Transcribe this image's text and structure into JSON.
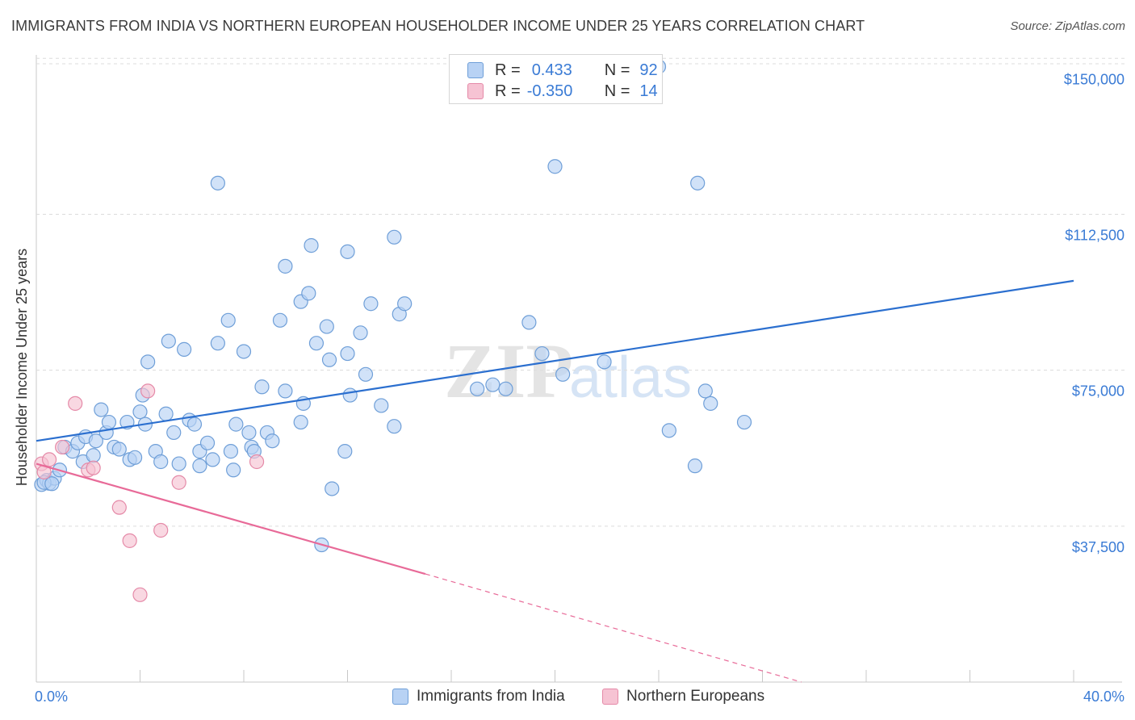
{
  "title": "IMMIGRANTS FROM INDIA VS NORTHERN EUROPEAN HOUSEHOLDER INCOME UNDER 25 YEARS CORRELATION CHART",
  "source": "Source: ZipAtlas.com",
  "watermark": {
    "zip": "ZIP",
    "atlas": "atlas"
  },
  "colors": {
    "blue_fill": "#b8d2f4",
    "blue_stroke": "#6f9fd8",
    "blue_line": "#2b6fcf",
    "pink_fill": "#f6c3d3",
    "pink_stroke": "#e58aa8",
    "pink_line": "#e86a98",
    "axis_text": "#3a7bd5",
    "grid": "#dcdcdc"
  },
  "stats_legend": {
    "rows": [
      {
        "r_label": "R =",
        "r_value": "0.433",
        "n_label": "N =",
        "n_value": "92"
      },
      {
        "r_label": "R =",
        "r_value": "-0.350",
        "n_label": "N =",
        "n_value": "14"
      }
    ]
  },
  "bottom_legend": [
    "Immigrants from India",
    "Northern Europeans"
  ],
  "chart_data": {
    "type": "scatter",
    "title": "IMMIGRANTS FROM INDIA VS NORTHERN EUROPEAN HOUSEHOLDER INCOME UNDER 25 YEARS CORRELATION CHART",
    "xlabel": "",
    "ylabel": "Householder Income Under 25 years",
    "xlim": [
      0,
      40
    ],
    "ylim": [
      0,
      152000
    ],
    "x_tick_labels": [
      "0.0%",
      "40.0%"
    ],
    "y_ticks": [
      37500,
      75000,
      112500,
      150000
    ],
    "y_tick_labels": [
      "$37,500",
      "$75,000",
      "$112,500",
      "$150,000"
    ],
    "grid": "horizontal dashed",
    "legend_position": "bottom",
    "series": [
      {
        "name": "Immigrants from India",
        "points": [
          [
            0.2,
            47500
          ],
          [
            0.4,
            48500
          ],
          [
            0.5,
            47800
          ],
          [
            0.7,
            49000
          ],
          [
            0.9,
            51000
          ],
          [
            1.1,
            56500
          ],
          [
            1.4,
            55500
          ],
          [
            1.6,
            57500
          ],
          [
            1.8,
            53000
          ],
          [
            1.9,
            59000
          ],
          [
            2.2,
            54500
          ],
          [
            2.3,
            58000
          ],
          [
            2.5,
            65500
          ],
          [
            2.7,
            60000
          ],
          [
            2.8,
            62500
          ],
          [
            3.0,
            56500
          ],
          [
            3.2,
            56000
          ],
          [
            3.5,
            62500
          ],
          [
            3.6,
            53500
          ],
          [
            3.8,
            54000
          ],
          [
            4.0,
            65000
          ],
          [
            4.1,
            69000
          ],
          [
            4.2,
            62000
          ],
          [
            4.3,
            77000
          ],
          [
            4.6,
            55500
          ],
          [
            4.8,
            53000
          ],
          [
            5.0,
            64500
          ],
          [
            5.1,
            82000
          ],
          [
            5.3,
            60000
          ],
          [
            5.5,
            52500
          ],
          [
            5.7,
            80000
          ],
          [
            5.9,
            63000
          ],
          [
            6.1,
            62000
          ],
          [
            6.3,
            55500
          ],
          [
            6.3,
            52000
          ],
          [
            6.6,
            57500
          ],
          [
            6.8,
            53500
          ],
          [
            7.0,
            81500
          ],
          [
            7.0,
            120000
          ],
          [
            7.4,
            87000
          ],
          [
            7.5,
            55500
          ],
          [
            7.6,
            51000
          ],
          [
            7.7,
            62000
          ],
          [
            8.0,
            79500
          ],
          [
            8.2,
            60000
          ],
          [
            8.3,
            56500
          ],
          [
            8.4,
            55500
          ],
          [
            8.7,
            71000
          ],
          [
            8.9,
            60000
          ],
          [
            9.1,
            58000
          ],
          [
            9.4,
            87000
          ],
          [
            9.6,
            70000
          ],
          [
            9.6,
            100000
          ],
          [
            10.2,
            91500
          ],
          [
            10.2,
            62500
          ],
          [
            10.3,
            67000
          ],
          [
            10.5,
            93500
          ],
          [
            10.6,
            105000
          ],
          [
            10.8,
            81500
          ],
          [
            11.2,
            85500
          ],
          [
            11.3,
            77500
          ],
          [
            11.4,
            46500
          ],
          [
            11.0,
            33000
          ],
          [
            11.9,
            55500
          ],
          [
            12.0,
            79000
          ],
          [
            12.1,
            69000
          ],
          [
            12.0,
            103500
          ],
          [
            12.5,
            84000
          ],
          [
            12.7,
            74000
          ],
          [
            12.9,
            91000
          ],
          [
            13.3,
            66500
          ],
          [
            13.8,
            61500
          ],
          [
            13.8,
            107000
          ],
          [
            14.0,
            88500
          ],
          [
            14.2,
            91000
          ],
          [
            17.0,
            70500
          ],
          [
            17.6,
            71500
          ],
          [
            18.1,
            70500
          ],
          [
            19.0,
            86500
          ],
          [
            19.5,
            79000
          ],
          [
            20.0,
            124000
          ],
          [
            20.3,
            74000
          ],
          [
            21.9,
            77000
          ],
          [
            24.0,
            148000
          ],
          [
            24.4,
            60500
          ],
          [
            25.4,
            52000
          ],
          [
            25.5,
            120000
          ],
          [
            25.8,
            70000
          ],
          [
            26.0,
            67000
          ],
          [
            27.3,
            62500
          ],
          [
            0.3,
            48000
          ],
          [
            0.6,
            47700
          ]
        ]
      },
      {
        "name": "Northern Europeans",
        "points": [
          [
            0.2,
            52500
          ],
          [
            0.3,
            50500
          ],
          [
            0.5,
            53500
          ],
          [
            1.0,
            56500
          ],
          [
            1.5,
            67000
          ],
          [
            2.0,
            51000
          ],
          [
            2.2,
            51500
          ],
          [
            3.2,
            42000
          ],
          [
            3.6,
            34000
          ],
          [
            4.0,
            21000
          ],
          [
            4.3,
            70000
          ],
          [
            4.8,
            36500
          ],
          [
            5.5,
            48000
          ],
          [
            8.5,
            53000
          ]
        ]
      }
    ],
    "trend_lines": [
      {
        "series": "Immigrants from India",
        "from": [
          0,
          58000
        ],
        "to": [
          40,
          96500
        ],
        "style": "solid"
      },
      {
        "series": "Northern Europeans",
        "from": [
          0,
          52500
        ],
        "to": [
          15,
          26000
        ],
        "style": "solid",
        "extension_to": [
          29.5,
          0
        ],
        "extension_style": "dashed"
      }
    ]
  }
}
